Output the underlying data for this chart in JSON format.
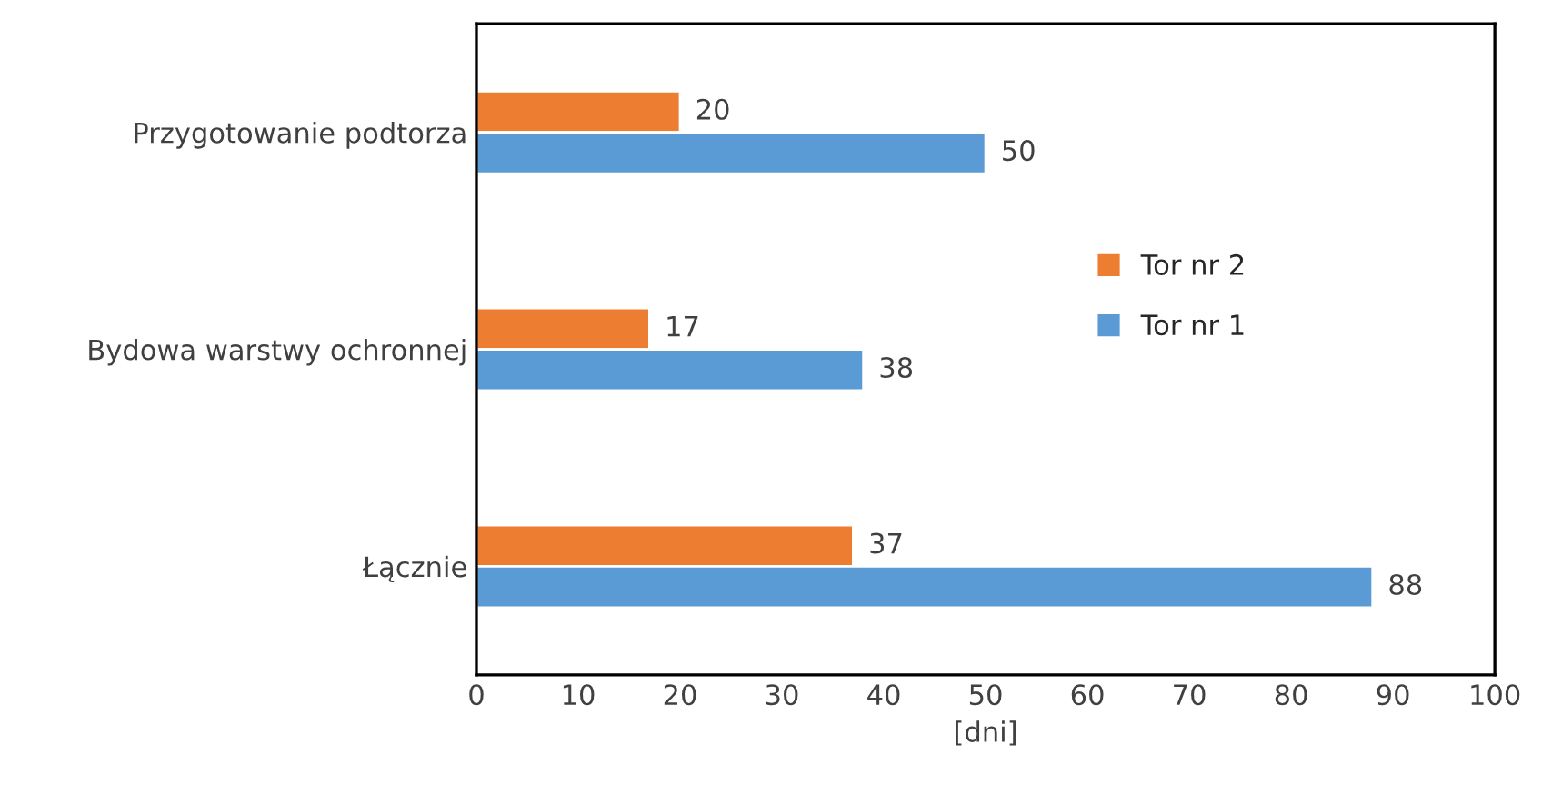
{
  "chart_data": {
    "type": "bar",
    "orientation": "horizontal",
    "xlabel": "[dni]",
    "categories": [
      "Przygotowanie podtorza",
      "Bydowa warstwy ochronnej",
      "Łącznie"
    ],
    "series": [
      {
        "name": "Tor nr 2",
        "color": "#ed7d31",
        "values": [
          20,
          17,
          37
        ]
      },
      {
        "name": "Tor nr 1",
        "color": "#5b9bd5",
        "values": [
          50,
          38,
          88
        ]
      }
    ],
    "xlim": [
      0,
      100
    ],
    "xticks": [
      0,
      10,
      20,
      30,
      40,
      50,
      60,
      70,
      80,
      90,
      100
    ],
    "data_labels": true,
    "grid": false,
    "legend": "right"
  }
}
